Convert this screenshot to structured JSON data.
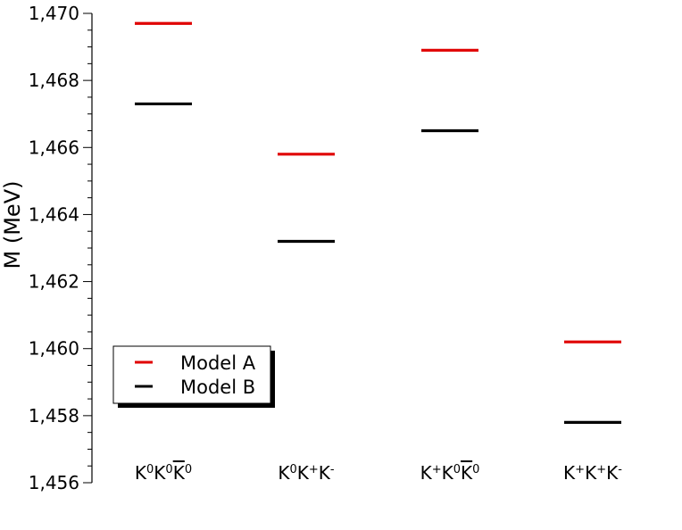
{
  "chart_data": {
    "type": "scatter",
    "ylabel": "M (MeV)",
    "ylim": [
      1456,
      1470
    ],
    "y_major_ticks": [
      1456,
      1458,
      1460,
      1462,
      1464,
      1466,
      1468,
      1470
    ],
    "y_tick_labels": [
      "1,456",
      "1,458",
      "1,460",
      "1,462",
      "1,464",
      "1,466",
      "1,468",
      "1,470"
    ],
    "categories": [
      {
        "base": "K",
        "sup1": "0",
        "mid": "K",
        "sup2": "0",
        "last": "K",
        "sup3": "0",
        "last_bar": true
      },
      {
        "base": "K",
        "sup1": "0",
        "mid": "K",
        "sup2": "+",
        "last": "K",
        "sup3": "-",
        "last_bar": false
      },
      {
        "base": "K",
        "sup1": "+",
        "mid": "K",
        "sup2": "0",
        "last": "K",
        "sup3": "0",
        "last_bar": true
      },
      {
        "base": "K",
        "sup1": "+",
        "mid": "K",
        "sup2": "+",
        "last": "K",
        "sup3": "-",
        "last_bar": false
      }
    ],
    "series": [
      {
        "name": "Model A",
        "color": "#e00000",
        "values": [
          1469.7,
          1465.8,
          1468.9,
          1460.2
        ]
      },
      {
        "name": "Model B",
        "color": "#000000",
        "values": [
          1467.3,
          1463.2,
          1466.5,
          1457.8
        ]
      }
    ],
    "legend_position": "lower-left",
    "grid": false
  }
}
